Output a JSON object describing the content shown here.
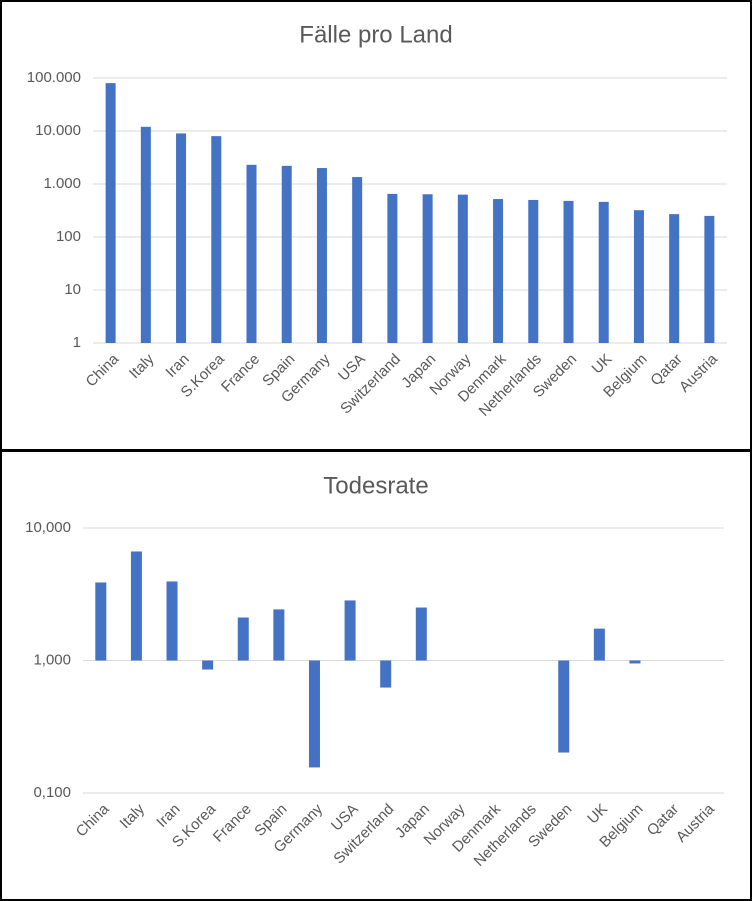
{
  "chart_data": [
    {
      "type": "bar",
      "title": "Fälle pro Land",
      "log": true,
      "grid": true,
      "color": "#4472c4",
      "categories": [
        "China",
        "Italy",
        "Iran",
        "S.Korea",
        "France",
        "Spain",
        "Germany",
        "USA",
        "Switzerland",
        "Japan",
        "Norway",
        "Denmark",
        "Netherlands",
        "Sweden",
        "UK",
        "Belgium",
        "Qatar",
        "Austria"
      ],
      "values": [
        80000,
        12000,
        9000,
        8000,
        2300,
        2200,
        2000,
        1350,
        650,
        640,
        630,
        520,
        500,
        480,
        460,
        320,
        270,
        250
      ],
      "ylim": [
        1,
        100000
      ],
      "yticks": [
        1,
        10,
        100,
        {
          "value": 1000,
          "label": "1.000"
        },
        {
          "value": 10000,
          "label": "10.000"
        },
        {
          "value": 100000,
          "label": "100.000"
        }
      ]
    },
    {
      "type": "bar",
      "title": "Todesrate",
      "log": true,
      "grid": true,
      "color": "#4472c4",
      "categories": [
        "China",
        "Italy",
        "Iran",
        "S.Korea",
        "France",
        "Spain",
        "Germany",
        "USA",
        "Switzerland",
        "Japan",
        "Norway",
        "Denmark",
        "Netherlands",
        "Sweden",
        "UK",
        "Belgium",
        "Qatar",
        "Austria"
      ],
      "values": [
        3.88,
        6.65,
        3.95,
        0.855,
        2.11,
        2.43,
        0.156,
        2.84,
        0.625,
        2.51,
        null,
        null,
        null,
        0.202,
        1.74,
        0.95,
        null,
        null
      ],
      "ylim": [
        0.1,
        10
      ],
      "yticks": [
        {
          "value": 0.1,
          "label": "0,100"
        },
        {
          "value": 1,
          "label": "1,000"
        },
        {
          "value": 10,
          "label": "10,000"
        }
      ]
    }
  ]
}
